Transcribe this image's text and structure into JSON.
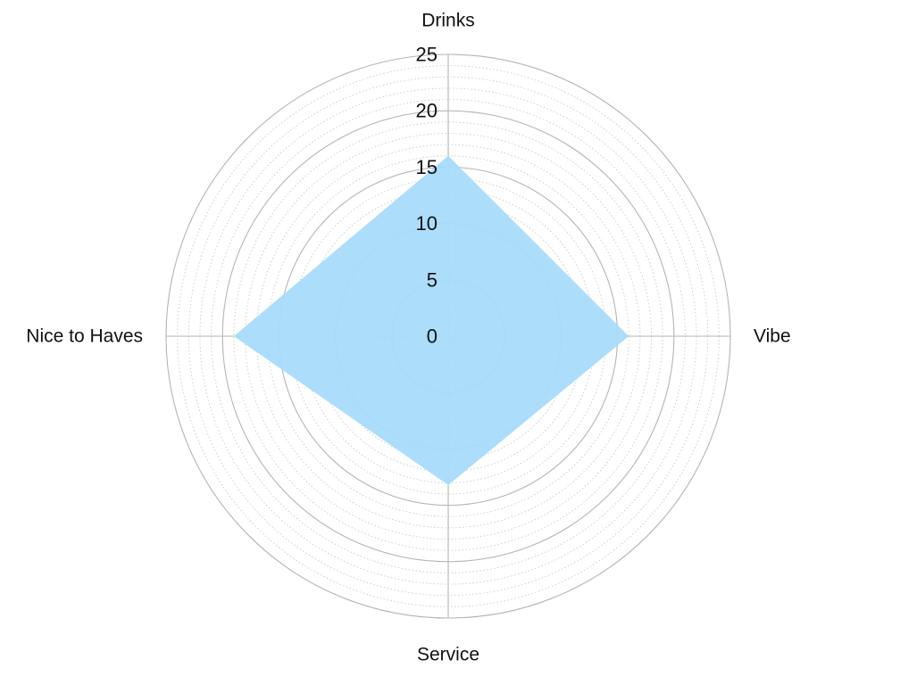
{
  "chart_data": {
    "type": "radar",
    "title": "",
    "axes": [
      "Drinks",
      "Vibe",
      "Service",
      "Nice to Haves"
    ],
    "series": [
      {
        "values": [
          16,
          16,
          13.2,
          19
        ],
        "color": "#a8dbfb"
      }
    ],
    "r_range": [
      0,
      25
    ],
    "r_ticks": [
      0,
      5,
      10,
      15,
      20,
      25
    ],
    "major_grid_step": 5,
    "minor_grid_step": 1,
    "grid": true,
    "colors": {
      "fill": "#a8dbfb",
      "major_grid": "#b5b5b5",
      "minor_grid": "#c8c8c8",
      "text": "#111111"
    }
  }
}
